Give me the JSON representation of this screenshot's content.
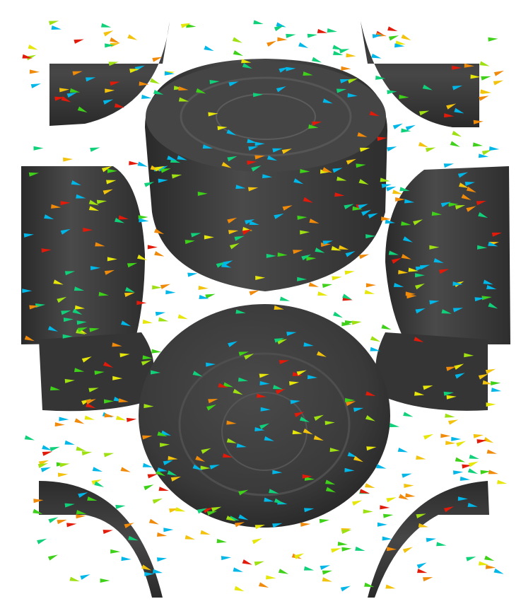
{
  "scene": {
    "description_free": true,
    "background": "#ffffff",
    "body_color": "#3f3f3f",
    "body_shade": "#2c2c2c",
    "body_light": "#5a5a5a",
    "arrow_palette": [
      "#00b7e8",
      "#11d07a",
      "#3fd11a",
      "#9ee012",
      "#e6e60a",
      "#f2c20c",
      "#f08a0a",
      "#e21a0a"
    ]
  }
}
